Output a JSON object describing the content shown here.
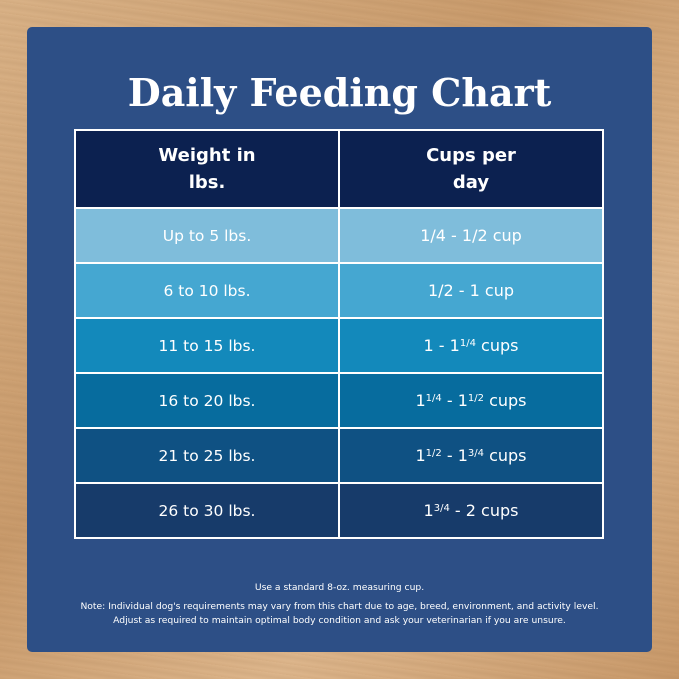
{
  "title": "Daily Feeding Chart",
  "colors": {
    "panel": "#2d4f86",
    "header": "#0c2150",
    "rows": [
      "#7fbddb",
      "#45a7d1",
      "#1389bb",
      "#076c9e",
      "#0f5183",
      "#173b6a"
    ]
  },
  "table": {
    "headers": [
      {
        "line1": "Weight in",
        "line2": "lbs."
      },
      {
        "line1": "Cups per",
        "line2": "day"
      }
    ],
    "rows": [
      {
        "weight": "Up to 5 lbs.",
        "cups": {
          "pre": "1/4 - 1/2 cup",
          "sup": "",
          "post": "",
          "sup2": "",
          "post2": ""
        }
      },
      {
        "weight": "6 to 10 lbs.",
        "cups": {
          "pre": "1/2 - 1 cup",
          "sup": "",
          "post": "",
          "sup2": "",
          "post2": ""
        }
      },
      {
        "weight": "11 to 15 lbs.",
        "cups": {
          "pre": "1 - 1",
          "sup": "1/4",
          "post": " cups",
          "sup2": "",
          "post2": ""
        }
      },
      {
        "weight": "16 to 20 lbs.",
        "cups": {
          "pre": "1",
          "sup": "1/4",
          "post": " - 1",
          "sup2": "1/2",
          "post2": " cups"
        }
      },
      {
        "weight": "21 to 25 lbs.",
        "cups": {
          "pre": "1",
          "sup": "1/2",
          "post": " - 1",
          "sup2": "3/4",
          "post2": " cups"
        }
      },
      {
        "weight": "26 to 30 lbs.",
        "cups": {
          "pre": "1",
          "sup": "3/4",
          "post": " - 2 cups",
          "sup2": "",
          "post2": ""
        }
      }
    ]
  },
  "notes": {
    "measure": "Use a standard 8-oz. measuring cup.",
    "line1": "Note: Individual dog's requirements may vary from this chart due to age, breed, environment, and activity level.",
    "line2": "Adjust as required to maintain optimal body condition and ask your veterinarian if you are unsure."
  }
}
